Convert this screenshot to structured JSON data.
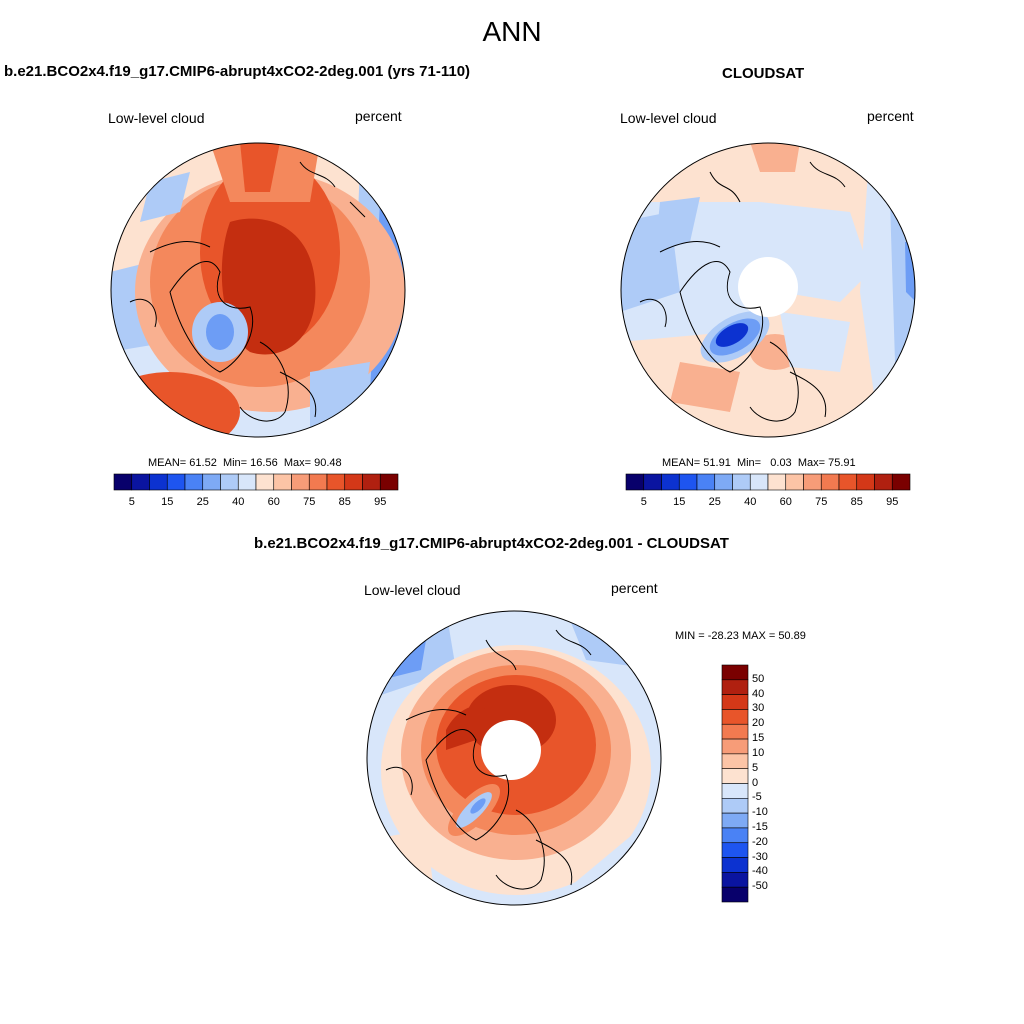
{
  "main_title": "ANN",
  "panels": {
    "model": {
      "title": "b.e21.BCO2x4.f19_g17.CMIP6-abrupt4xCO2-2deg.001 (yrs 71-110)",
      "left_label": "Low-level cloud",
      "right_label": "percent",
      "stats": {
        "mean_label": "MEAN=",
        "mean": "61.52",
        "min_label": "Min=",
        "min": "16.56",
        "max_label": "Max=",
        "max": "90.48"
      }
    },
    "obs": {
      "title": "CLOUDSAT",
      "left_label": "Low-level cloud",
      "right_label": "percent",
      "stats": {
        "mean_label": "MEAN=",
        "mean": "51.91",
        "min_label": "Min=",
        "min": "0.03",
        "max_label": "Max=",
        "max": "75.91"
      }
    },
    "diff": {
      "title": "b.e21.BCO2x4.f19_g17.CMIP6-abrupt4xCO2-2deg.001 - CLOUDSAT",
      "left_label": "Low-level cloud",
      "right_label": "percent",
      "minmax": "MIN = -28.23 MAX =  50.89"
    }
  },
  "colorbars": {
    "abs": {
      "ticks": [
        "5",
        "15",
        "25",
        "40",
        "60",
        "75",
        "85",
        "95"
      ],
      "colors": [
        "#08006b",
        "#0a14a0",
        "#0c32d0",
        "#1e55f0",
        "#4a82f5",
        "#7eaaf5",
        "#aecbf7",
        "#d8e6fa",
        "#fde2d0",
        "#fcc4a6",
        "#f79c78",
        "#f27a50",
        "#e8552a",
        "#d43818",
        "#b02010",
        "#7a0000"
      ]
    },
    "diff": {
      "ticks": [
        "50",
        "40",
        "30",
        "20",
        "15",
        "10",
        "5",
        "0",
        "-5",
        "-10",
        "-15",
        "-20",
        "-30",
        "-40",
        "-50"
      ],
      "colors": [
        "#7a0000",
        "#b02010",
        "#d43818",
        "#e8552a",
        "#f27a50",
        "#f79c78",
        "#fcc4a6",
        "#fde2d0",
        "#d8e6fa",
        "#aecbf7",
        "#7eaaf5",
        "#4a82f5",
        "#1e55f0",
        "#0c32d0",
        "#0a14a0",
        "#08006b"
      ]
    }
  },
  "map_colors": {
    "deep_red": "#c42e10",
    "red": "#e8552a",
    "orange": "#f4885c",
    "salmon": "#f9b090",
    "peach": "#fde2d0",
    "pale_blue": "#d8e6fa",
    "light_blue": "#aecbf7",
    "blue": "#6d9df5",
    "deep_blue": "#0c32d0",
    "coast": "#000000",
    "missing": "#ffffff"
  }
}
